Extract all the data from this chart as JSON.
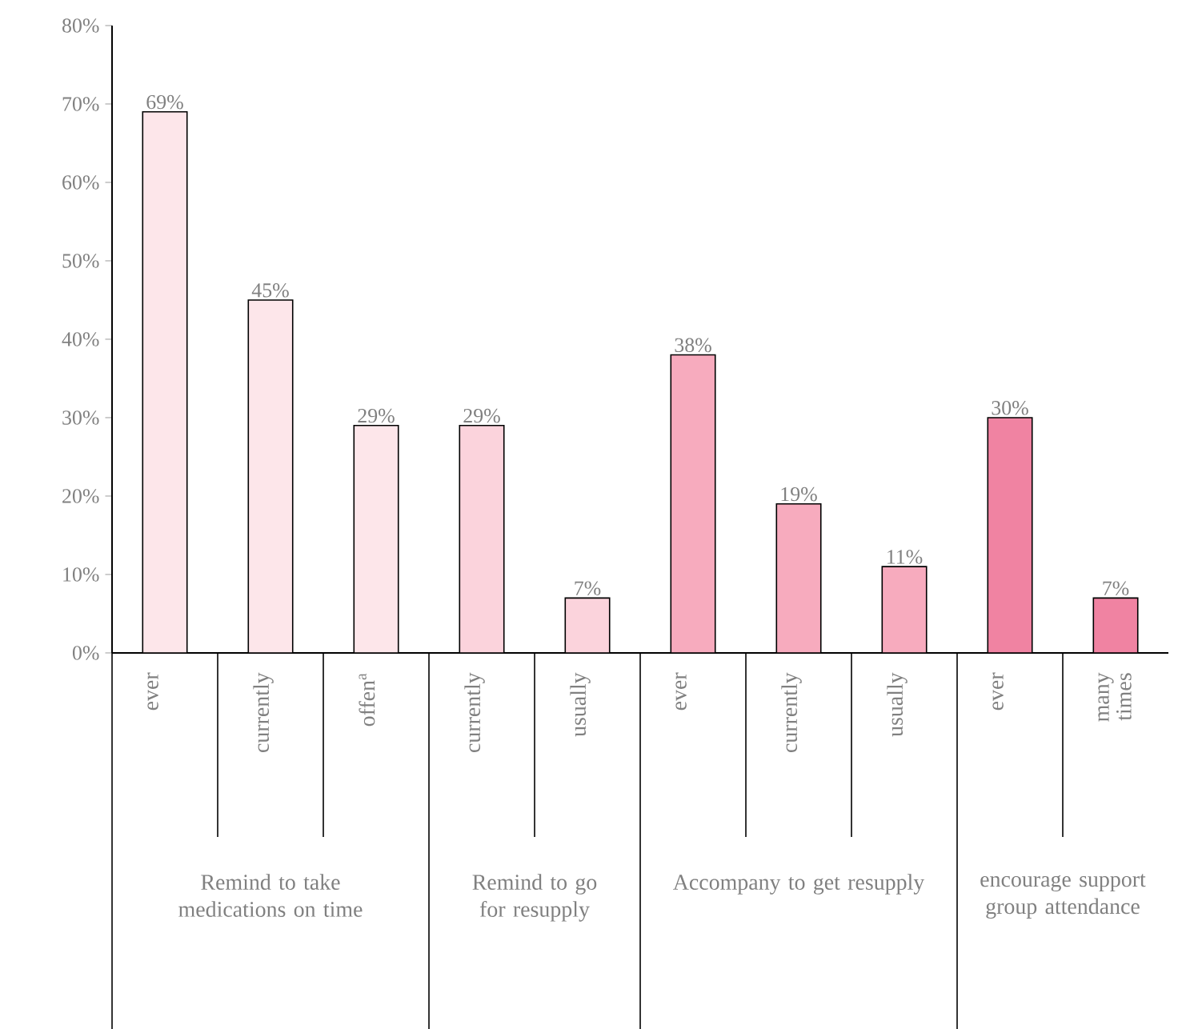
{
  "chart_data": {
    "type": "bar",
    "categories": [
      "ever",
      "currently",
      "offen$^{a}$",
      "currently",
      "usually",
      "ever",
      "currently",
      "usually",
      "ever",
      "many times"
    ],
    "values": [
      69,
      45,
      29,
      29,
      7,
      38,
      19,
      11,
      30,
      7
    ],
    "value_labels": [
      "69%",
      "45%",
      "29%",
      "29%",
      "7%",
      "38%",
      "19%",
      "11%",
      "30%",
      "7%"
    ],
    "colors": [
      "#fde6ea",
      "#fde6ea",
      "#fde6ea",
      "#fbd3dc",
      "#fbd3dc",
      "#f7abbe",
      "#f7abbe",
      "#f7abbe",
      "#f083a2",
      "#f083a2"
    ],
    "ylim": [
      0,
      80
    ],
    "yticks": [
      {
        "value": 0,
        "label": "0%"
      },
      {
        "value": 10,
        "label": "10%"
      },
      {
        "value": 20,
        "label": "20%"
      },
      {
        "value": 30,
        "label": "30%"
      },
      {
        "value": 40,
        "label": "40%"
      },
      {
        "value": 50,
        "label": "50%"
      },
      {
        "value": 60,
        "label": "60%"
      },
      {
        "value": 70,
        "label": "70%"
      },
      {
        "value": 80,
        "label": "80%"
      }
    ],
    "grid": false,
    "annotations": [
      "Remind to take medications on time",
      "Remind to go for resupply",
      "Accompany to get resupply",
      "encourage support group attendance"
    ]
  }
}
